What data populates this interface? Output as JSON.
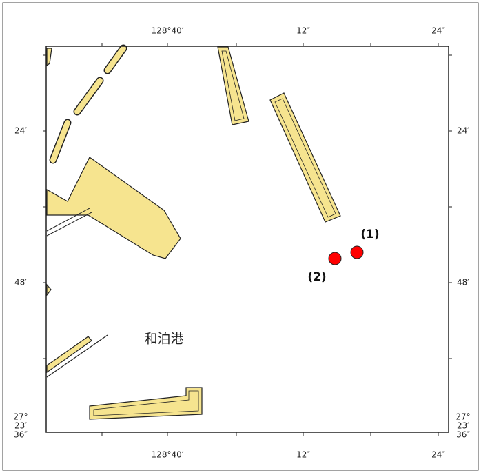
{
  "map": {
    "top_labels": [
      "128°40′",
      "12″",
      "24″"
    ],
    "bottom_labels": [
      "128°40′",
      "12″",
      "24″"
    ],
    "left_labels": [
      "24′",
      "48′"
    ],
    "right_labels": [
      "24′",
      "48′"
    ],
    "corner_left": [
      "27°",
      "23′",
      "36″"
    ],
    "corner_right": [
      "27°",
      "23′",
      "36″"
    ],
    "place_label": "和泊港",
    "points": [
      {
        "label": "(1)"
      },
      {
        "label": "(2)"
      }
    ]
  }
}
